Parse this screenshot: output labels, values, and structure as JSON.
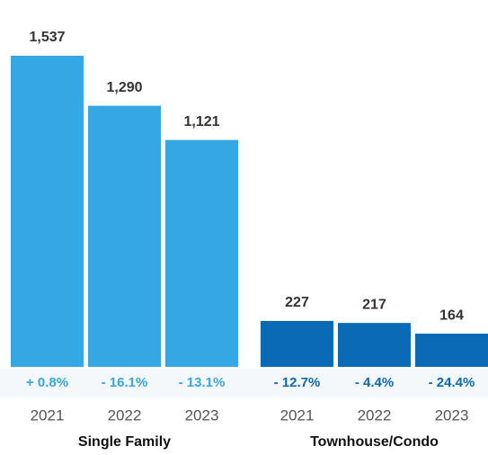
{
  "chart_data": {
    "type": "bar",
    "groups": [
      {
        "name": "Single Family",
        "color": "#35a7e3",
        "change_color": "#35a7e3",
        "categories": [
          "2021",
          "2022",
          "2023"
        ],
        "values": [
          1537,
          1290,
          1121
        ],
        "value_labels": [
          "1,537",
          "1,290",
          "1,121"
        ],
        "change_labels": [
          "+ 0.8%",
          "- 16.1%",
          "- 13.1%"
        ]
      },
      {
        "name": "Townhouse/Condo",
        "color": "#0a6ab5",
        "change_color": "#0a6ab5",
        "categories": [
          "2021",
          "2022",
          "2023"
        ],
        "values": [
          227,
          217,
          164
        ],
        "value_labels": [
          "227",
          "217",
          "164"
        ],
        "change_labels": [
          "- 12.7%",
          "- 4.4%",
          "- 24.4%"
        ]
      }
    ]
  }
}
